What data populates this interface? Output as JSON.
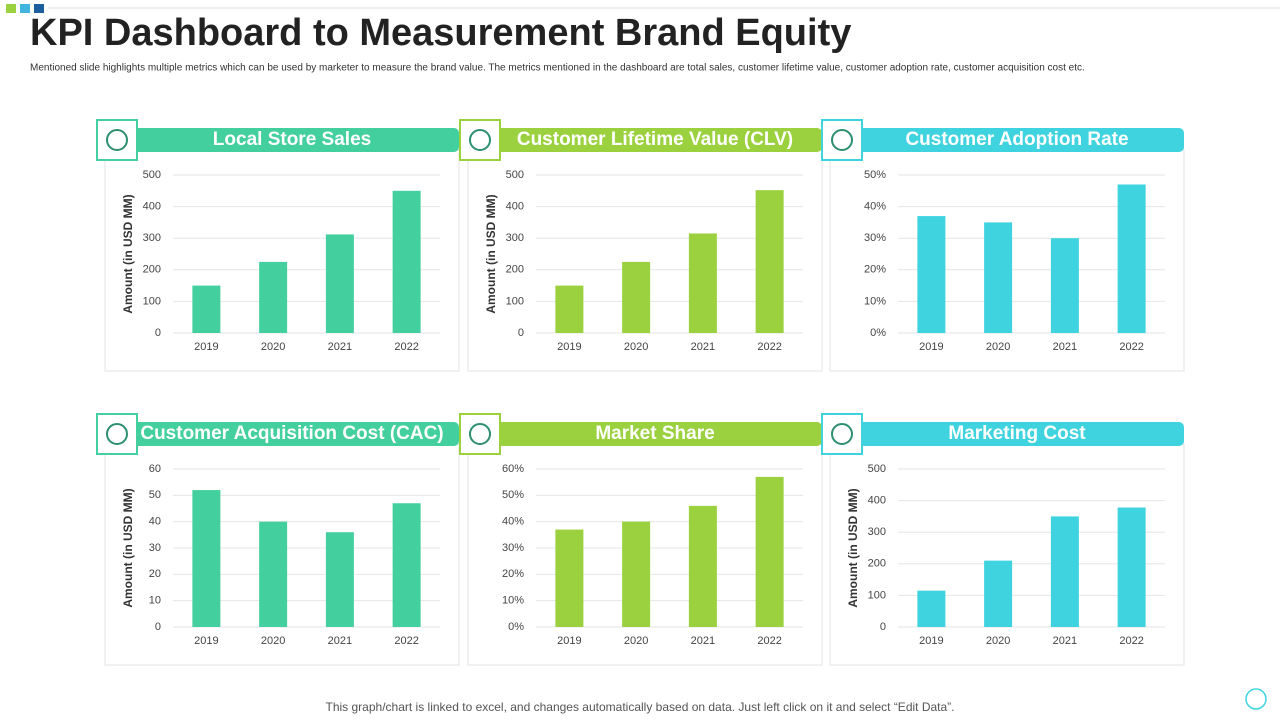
{
  "title": "KPI Dashboard to Measurement Brand Equity",
  "subtitle": "Mentioned slide highlights multiple  metrics which can be used by marketer to measure the brand value. The metrics mentioned  in the dashboard are total sales, customer lifetime  value, customer adoption  rate, customer acquisition cost etc.",
  "footer": "This graph/chart is linked to excel,  and changes automatically based on data. Just left click on it and select “Edit Data”.",
  "chart_data": [
    {
      "type": "bar",
      "title": "Local Store Sales",
      "ylabel": "Amount (in USD MM)",
      "color": "#44cf9f",
      "categories": [
        "2019",
        "2020",
        "2021",
        "2022"
      ],
      "values": [
        150,
        225,
        312,
        450
      ],
      "ylim": [
        0,
        500
      ],
      "yticks": [
        0,
        100,
        200,
        300,
        400,
        500
      ],
      "grid": true
    },
    {
      "type": "bar",
      "title": "Customer Lifetime Value (CLV)",
      "ylabel": "Amount (in USD MM)",
      "color": "#9bd13f",
      "categories": [
        "2019",
        "2020",
        "2021",
        "2022"
      ],
      "values": [
        150,
        225,
        315,
        452
      ],
      "ylim": [
        0,
        500
      ],
      "yticks": [
        0,
        100,
        200,
        300,
        400,
        500
      ],
      "grid": true
    },
    {
      "type": "bar",
      "title": "Customer Adoption Rate",
      "color": "#3fd3e0",
      "categories": [
        "2019",
        "2020",
        "2021",
        "2022"
      ],
      "values": [
        37,
        35,
        30,
        47
      ],
      "ylim": [
        0,
        50
      ],
      "yticks": [
        {
          "value": 0,
          "label": "0%"
        },
        {
          "value": 10,
          "label": "10%"
        },
        {
          "value": 20,
          "label": "20%"
        },
        {
          "value": 30,
          "label": "30%"
        },
        {
          "value": 40,
          "label": "40%"
        },
        {
          "value": 50,
          "label": "50%"
        }
      ],
      "grid": true
    },
    {
      "type": "bar",
      "title": "Customer Acquisition Cost (CAC)",
      "ylabel": "Amount (in USD MM)",
      "color": "#44cf9f",
      "categories": [
        "2019",
        "2020",
        "2021",
        "2022"
      ],
      "values": [
        52,
        40,
        36,
        47
      ],
      "ylim": [
        0,
        60
      ],
      "yticks": [
        0,
        10,
        20,
        30,
        40,
        50,
        60
      ],
      "grid": true
    },
    {
      "type": "bar",
      "title": "Market Share",
      "color": "#9bd13f",
      "categories": [
        "2019",
        "2020",
        "2021",
        "2022"
      ],
      "values": [
        37,
        40,
        46,
        57
      ],
      "ylim": [
        0,
        60
      ],
      "yticks": [
        {
          "value": 0,
          "label": "0%"
        },
        {
          "value": 10,
          "label": "10%"
        },
        {
          "value": 20,
          "label": "20%"
        },
        {
          "value": 30,
          "label": "30%"
        },
        {
          "value": 40,
          "label": "40%"
        },
        {
          "value": 50,
          "label": "50%"
        },
        {
          "value": 60,
          "label": "60%"
        }
      ],
      "grid": true
    },
    {
      "type": "bar",
      "title": "Marketing Cost",
      "ylabel": "Amount (in USD MM)",
      "color": "#3fd3e0",
      "categories": [
        "2019",
        "2020",
        "2021",
        "2022"
      ],
      "values": [
        115,
        210,
        350,
        378
      ],
      "ylim": [
        0,
        500
      ],
      "yticks": [
        0,
        100,
        200,
        300,
        400,
        500
      ],
      "grid": true
    }
  ]
}
